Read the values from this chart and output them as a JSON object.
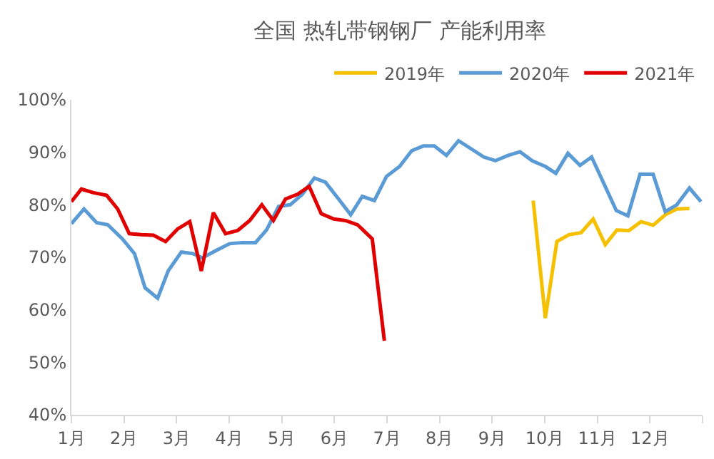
{
  "chart_data": {
    "type": "line",
    "title": "全国 热轧带钢钢厂 产能利用率",
    "series": [
      {
        "name": "2019年",
        "color": "#f5c000",
        "x": [
          9.78,
          10.01,
          10.23,
          10.46,
          10.69,
          10.92,
          11.15,
          11.37,
          11.6,
          11.83,
          12.06,
          12.29,
          12.51,
          12.75
        ],
        "values": [
          80.8,
          58.4,
          73,
          74.3,
          74.7,
          77.3,
          72.4,
          75.2,
          75.1,
          76.8,
          76.1,
          78.1,
          79.2,
          79.3
        ]
      },
      {
        "name": "2020年",
        "color": "#5b9bd5",
        "x": [
          1,
          1.24,
          1.48,
          1.69,
          1.97,
          2.2,
          2.4,
          2.64,
          2.84,
          3.09,
          3.31,
          3.49,
          3.77,
          4.01,
          4.25,
          4.5,
          4.71,
          4.94,
          5.16,
          5.39,
          5.62,
          5.83,
          6.08,
          6.31,
          6.53,
          6.76,
          6.99,
          7.24,
          7.47,
          7.69,
          7.9,
          8.13,
          8.36,
          8.61,
          8.84,
          9.06,
          9.3,
          9.53,
          9.76,
          10.01,
          10.21,
          10.44,
          10.67,
          10.89,
          11.13,
          11.36,
          11.58,
          11.81,
          12.06,
          12.29,
          12.51,
          12.75,
          12.97
        ],
        "values": [
          76.4,
          79.2,
          76.6,
          76.2,
          73.5,
          70.7,
          64.2,
          62.2,
          67.4,
          71,
          70.7,
          69.9,
          71.4,
          72.6,
          72.8,
          72.8,
          75.2,
          79.7,
          80,
          82,
          85.1,
          84.3,
          81.1,
          78.1,
          81.6,
          80.8,
          85.4,
          87.3,
          90.3,
          91.2,
          91.2,
          89.4,
          92.2,
          90.6,
          89.1,
          88.4,
          89.4,
          90.1,
          88.4,
          87.3,
          86,
          89.8,
          87.5,
          89.1,
          83.9,
          78.9,
          77.9,
          85.8,
          85.8,
          78.7,
          80,
          83.2,
          80.6
        ]
      },
      {
        "name": "2021年",
        "color": "#e00000",
        "x": [
          1,
          1.19,
          1.42,
          1.67,
          1.88,
          2.1,
          2.33,
          2.56,
          2.79,
          3.02,
          3.25,
          3.47,
          3.7,
          3.93,
          4.16,
          4.39,
          4.62,
          4.84,
          5.07,
          5.3,
          5.52,
          5.75,
          5.99,
          6.21,
          6.44,
          6.72,
          6.95
        ],
        "values": [
          80.6,
          83,
          82.3,
          81.8,
          79.2,
          74.5,
          74.3,
          74.2,
          73,
          75.4,
          76.8,
          67.4,
          78.5,
          74.5,
          75.1,
          77,
          80,
          77,
          81.1,
          82,
          83.5,
          78.3,
          77.3,
          77,
          76.2,
          73.5,
          54.1
        ]
      }
    ],
    "xlim": [
      1,
      13
    ],
    "xticks": [
      {
        "value": 1,
        "label": "1月"
      },
      {
        "value": 2,
        "label": "2月"
      },
      {
        "value": 3,
        "label": "3月"
      },
      {
        "value": 4,
        "label": "4月"
      },
      {
        "value": 5,
        "label": "5月"
      },
      {
        "value": 6,
        "label": "6月"
      },
      {
        "value": 7,
        "label": "7月"
      },
      {
        "value": 8,
        "label": "8月"
      },
      {
        "value": 9,
        "label": "9月"
      },
      {
        "value": 10,
        "label": "10月"
      },
      {
        "value": 11,
        "label": "11月"
      },
      {
        "value": 12,
        "label": "12月"
      },
      {
        "value": 13,
        "label": null
      }
    ],
    "ylim": [
      40,
      100
    ],
    "yticks": [
      {
        "value": 40,
        "label": "40%"
      },
      {
        "value": 50,
        "label": "50%"
      },
      {
        "value": 60,
        "label": "60%"
      },
      {
        "value": 70,
        "label": "70%"
      },
      {
        "value": 80,
        "label": "80%"
      },
      {
        "value": 90,
        "label": "90%"
      },
      {
        "value": 100,
        "label": "100%"
      }
    ],
    "grid": false,
    "legend": "top right",
    "marker": "none",
    "line_style": "solid"
  }
}
